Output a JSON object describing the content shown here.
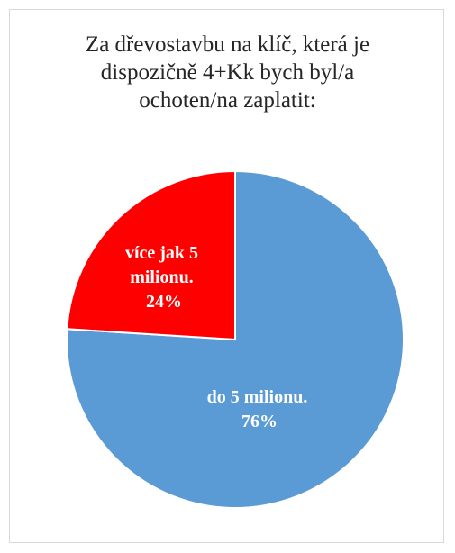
{
  "chart_data": {
    "type": "pie",
    "title_lines": [
      "Za dřevostavbu na klíč, která je",
      "dispozičně 4+Kk bych byl/a",
      "ochoten/na  zaplatit:"
    ],
    "slices": [
      {
        "label_lines": [
          "do 5 milionu.",
          "76%"
        ],
        "value": 76,
        "color": "#5b9bd5"
      },
      {
        "label_lines": [
          "více jak 5",
          "milionu.",
          "24%"
        ],
        "value": 24,
        "color": "#ff0000"
      }
    ]
  }
}
